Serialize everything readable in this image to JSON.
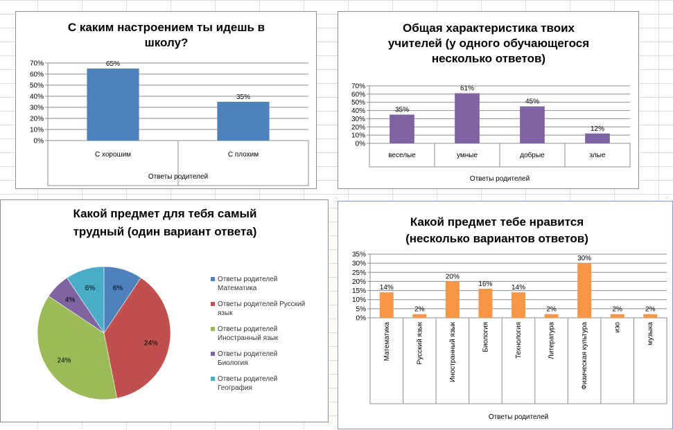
{
  "colors": {
    "chart1_bar": "#4f81bd",
    "chart2_bar": "#8064a2",
    "chart4_bar": "#f79646",
    "pie": [
      "#4f81bd",
      "#c0504d",
      "#9bbb59",
      "#8064a2",
      "#4bacc6"
    ]
  },
  "chart_data": [
    {
      "type": "bar",
      "title_lines": [
        "С каким настроением ты идешь в",
        "школу?"
      ],
      "categories": [
        "С хорошим",
        "С плохим"
      ],
      "values": [
        65,
        35
      ],
      "data_labels": [
        "65%",
        "35%"
      ],
      "xlabel": "Ответы родителей",
      "ylim": [
        0,
        70
      ],
      "yticks": [
        "0%",
        "10%",
        "20%",
        "30%",
        "40%",
        "50%",
        "60%",
        "70%"
      ],
      "grid": true,
      "legend": "none"
    },
    {
      "type": "bar",
      "title_lines": [
        "Общая характеристика твоих",
        "учителей (у одного обучающегося",
        "несколько ответов)"
      ],
      "categories": [
        "веселые",
        "умные",
        "добрые",
        "злые"
      ],
      "values": [
        35,
        61,
        45,
        12
      ],
      "data_labels": [
        "35%",
        "61%",
        "45%",
        "12%"
      ],
      "xlabel": "Ответы родителей",
      "ylim": [
        0,
        70
      ],
      "yticks": [
        "0%",
        "10%",
        "20%",
        "30%",
        "40%",
        "50%",
        "60%",
        "70%"
      ],
      "grid": true,
      "legend": "none"
    },
    {
      "type": "pie",
      "title_lines": [
        "Какой предмет для тебя самый",
        "трудный (один вариант ответа)"
      ],
      "slices": [
        {
          "label": "Ответы родителей Математика",
          "label_lines": [
            "Ответы родителей",
            "Математика"
          ],
          "value": 6,
          "data_label": "6%"
        },
        {
          "label": "Ответы родителей Русский язык",
          "label_lines": [
            "Ответы родителей Русский",
            "язык"
          ],
          "value": 24,
          "data_label": "24%"
        },
        {
          "label": "Ответы родителей Иностранный язык",
          "label_lines": [
            "Ответы родителей",
            "Иностранный язык"
          ],
          "value": 24,
          "data_label": "24%"
        },
        {
          "label": "Ответы родителей Биология",
          "label_lines": [
            "Ответы родителей",
            "Биология"
          ],
          "value": 4,
          "data_label": "4%"
        },
        {
          "label": "Ответы родителей География",
          "label_lines": [
            "Ответы родителей",
            "География"
          ],
          "value": 6,
          "data_label": "6%"
        }
      ],
      "legend": "right"
    },
    {
      "type": "bar",
      "title_lines": [
        "Какой предмет тебе нравится",
        "(несколько вариантов ответов)"
      ],
      "categories": [
        "Математика",
        "Русский язык",
        "Иностранный язык",
        "Биология",
        "Технология",
        "Литература",
        "Физическая культура",
        "изо",
        "музыка"
      ],
      "values": [
        14,
        2,
        20,
        16,
        14,
        2,
        30,
        2,
        2
      ],
      "data_labels": [
        "14%",
        "2%",
        "20%",
        "16%",
        "14%",
        "2%",
        "30%",
        "2%",
        "2%"
      ],
      "xlabel": "Ответы родителей",
      "ylim": [
        0,
        35
      ],
      "yticks": [
        "0%",
        "5%",
        "10%",
        "15%",
        "20%",
        "25%",
        "30%",
        "35%"
      ],
      "grid": true,
      "legend": "none"
    }
  ]
}
